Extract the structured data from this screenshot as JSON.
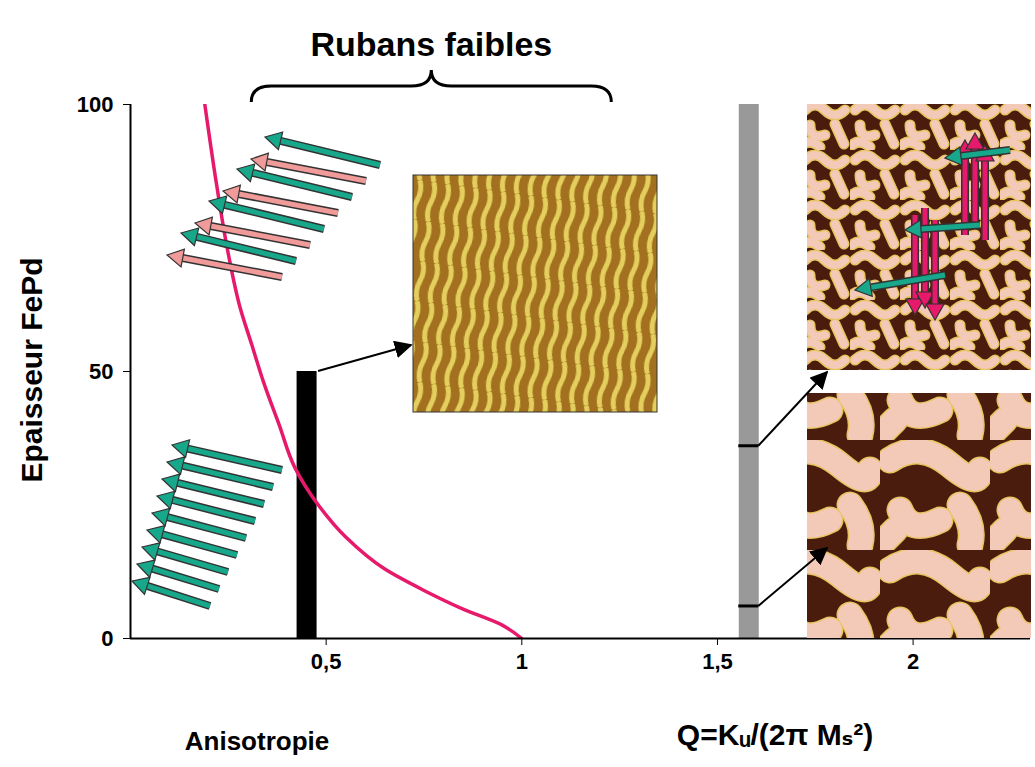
{
  "chart_data": {
    "type": "line",
    "annotations": [
      {
        "text": "Rubans faibles",
        "x": [
          0.31,
          1.23
        ]
      }
    ],
    "xlabels": [
      "Anisotropie",
      "Q=Kᵤ/(2π Mₛ²)"
    ],
    "ylabel": "Epaisseur FePd",
    "xlim": [
      0,
      2.3
    ],
    "xticks": [
      {
        "value": 0.5,
        "label": "0,5"
      },
      1,
      {
        "value": 1.5,
        "label": "1,5"
      },
      2
    ],
    "ylim": [
      0,
      100
    ],
    "yticks": [
      0,
      50,
      100
    ],
    "x": [
      0.19,
      0.22,
      0.25,
      0.28,
      0.31,
      0.34,
      0.38,
      0.42,
      0.48,
      0.55,
      0.65,
      0.75,
      0.85,
      0.95,
      1.0
    ],
    "series": [
      {
        "color": "#e6196b",
        "values": [
          100,
          85,
          72,
          62,
          55,
          48,
          40,
          32,
          25,
          19,
          13,
          9,
          5.5,
          2.5,
          0
        ]
      }
    ],
    "samples": [
      {
        "x": 0.45,
        "y": [
          0,
          50
        ],
        "color": "#000000"
      },
      {
        "x": 1.58,
        "y": [
          0,
          100
        ],
        "color": "#999999",
        "marks": [
          36,
          6
        ]
      }
    ]
  }
}
